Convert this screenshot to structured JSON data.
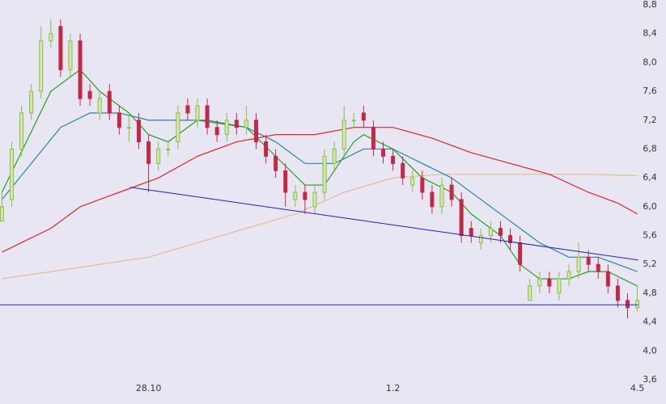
{
  "chart_data": {
    "type": "candlestick",
    "xlim": [
      -0.2,
      65.2
    ],
    "ylim": [
      3.6,
      8.8
    ],
    "yticks": [
      {
        "value": 3.6,
        "label": "3,6"
      },
      {
        "value": 4.0,
        "label": "4,0"
      },
      {
        "value": 4.4,
        "label": "4,4"
      },
      {
        "value": 4.8,
        "label": "4,8"
      },
      {
        "value": 5.2,
        "label": "5,2"
      },
      {
        "value": 5.6,
        "label": "5,6"
      },
      {
        "value": 6.0,
        "label": "6,0"
      },
      {
        "value": 6.4,
        "label": "6,4"
      },
      {
        "value": 6.8,
        "label": "6,8"
      },
      {
        "value": 7.2,
        "label": "7,2"
      },
      {
        "value": 7.6,
        "label": "7,6"
      },
      {
        "value": 8.0,
        "label": "8,0"
      },
      {
        "value": 8.4,
        "label": "8,4"
      },
      {
        "value": 8.8,
        "label": "8,8"
      }
    ],
    "xticks": [
      {
        "value": 15,
        "label": "28.10"
      },
      {
        "value": 40,
        "label": "1.2"
      },
      {
        "value": 65,
        "label": "4.5"
      }
    ],
    "candles": {
      "up_color": "#8cbc4c",
      "down_color": "#c42848",
      "x": [
        0,
        1,
        2,
        3,
        4,
        5,
        6,
        7,
        8,
        9,
        10,
        11,
        12,
        13,
        14,
        15,
        16,
        17,
        18,
        19,
        20,
        21,
        22,
        23,
        24,
        25,
        26,
        27,
        28,
        29,
        30,
        31,
        32,
        33,
        34,
        35,
        36,
        37,
        38,
        39,
        40,
        41,
        42,
        43,
        44,
        45,
        46,
        47,
        48,
        49,
        50,
        51,
        52,
        53,
        54,
        55,
        56,
        57,
        58,
        59,
        60,
        61,
        62,
        63,
        64,
        65
      ],
      "open": [
        5.8,
        6.1,
        6.8,
        7.3,
        7.6,
        8.3,
        8.5,
        7.9,
        8.3,
        7.6,
        7.3,
        7.6,
        7.3,
        7.1,
        7.2,
        6.9,
        6.6,
        6.8,
        6.9,
        7.4,
        7.2,
        7.4,
        7.1,
        7.0,
        7.2,
        7.1,
        7.2,
        6.9,
        6.7,
        6.5,
        6.1,
        6.2,
        6.0,
        6.2,
        6.6,
        6.8,
        7.2,
        7.3,
        7.1,
        6.8,
        6.7,
        6.6,
        6.3,
        6.4,
        6.2,
        6.0,
        6.3,
        6.1,
        5.7,
        5.5,
        5.6,
        5.7,
        5.6,
        5.5,
        4.7,
        4.9,
        5.0,
        4.8,
        5.0,
        5.1,
        5.3,
        5.2,
        5.1,
        4.9,
        4.7,
        4.6
      ],
      "high": [
        6.2,
        6.9,
        7.4,
        7.7,
        8.5,
        8.6,
        8.6,
        8.4,
        8.4,
        7.7,
        7.6,
        7.7,
        7.4,
        7.3,
        7.3,
        7.0,
        6.9,
        6.9,
        7.4,
        7.5,
        7.5,
        7.5,
        7.2,
        7.3,
        7.3,
        7.4,
        7.3,
        7.0,
        6.8,
        6.6,
        6.3,
        6.3,
        6.3,
        6.8,
        6.9,
        7.4,
        7.3,
        7.4,
        7.2,
        6.9,
        6.8,
        6.7,
        6.5,
        6.5,
        6.3,
        6.4,
        6.4,
        6.2,
        5.8,
        5.7,
        5.8,
        5.8,
        5.7,
        5.6,
        5.0,
        5.1,
        5.1,
        5.1,
        5.2,
        5.5,
        5.4,
        5.3,
        5.2,
        5.0,
        4.8,
        4.9
      ],
      "low": [
        5.8,
        6.0,
        6.7,
        7.2,
        7.5,
        8.2,
        7.8,
        7.8,
        7.4,
        7.4,
        7.2,
        7.2,
        7.0,
        6.9,
        6.8,
        6.2,
        6.5,
        6.7,
        6.8,
        7.2,
        7.1,
        7.0,
        6.9,
        6.9,
        7.0,
        7.0,
        6.8,
        6.6,
        6.4,
        6.0,
        6.0,
        5.9,
        5.9,
        6.1,
        6.5,
        6.7,
        7.1,
        7.1,
        6.7,
        6.6,
        6.5,
        6.3,
        6.2,
        6.1,
        5.9,
        5.9,
        6.0,
        5.5,
        5.5,
        5.4,
        5.5,
        5.5,
        5.4,
        5.1,
        4.7,
        4.8,
        4.8,
        4.7,
        4.9,
        5.0,
        5.1,
        5.0,
        4.8,
        4.6,
        4.45,
        4.55
      ],
      "close": [
        6.0,
        6.8,
        7.3,
        7.6,
        8.3,
        8.4,
        7.9,
        8.3,
        7.5,
        7.5,
        7.5,
        7.3,
        7.1,
        7.1,
        6.9,
        6.6,
        6.8,
        6.8,
        7.3,
        7.3,
        7.4,
        7.1,
        7.0,
        7.2,
        7.1,
        7.2,
        6.9,
        6.7,
        6.5,
        6.2,
        6.2,
        6.1,
        6.2,
        6.7,
        6.8,
        7.2,
        7.2,
        7.2,
        6.8,
        6.7,
        6.6,
        6.4,
        6.4,
        6.2,
        6.0,
        6.3,
        6.1,
        5.6,
        5.6,
        5.6,
        5.7,
        5.6,
        5.5,
        5.2,
        4.9,
        5.0,
        4.9,
        5.0,
        5.1,
        5.3,
        5.2,
        5.1,
        4.9,
        4.7,
        4.6,
        4.7
      ]
    },
    "lines": [
      {
        "color": "#e8b894",
        "x": [
          0,
          10,
          15,
          20,
          25,
          30,
          35,
          40,
          45,
          50,
          55,
          60,
          65
        ],
        "values": [
          5.0,
          5.2,
          5.3,
          5.5,
          5.7,
          5.9,
          6.2,
          6.4,
          6.45,
          6.45,
          6.45,
          6.45,
          6.43
        ]
      },
      {
        "color": "#e02424",
        "x": [
          0,
          5,
          8,
          12,
          16,
          20,
          24,
          28,
          32,
          36,
          40,
          44,
          48,
          52,
          56,
          60,
          63,
          65
        ],
        "values": [
          5.37,
          5.7,
          6.0,
          6.2,
          6.4,
          6.7,
          6.9,
          7.0,
          7.0,
          7.1,
          7.1,
          6.95,
          6.75,
          6.6,
          6.45,
          6.2,
          6.05,
          5.9
        ]
      },
      {
        "color": "#2a84a4",
        "x": [
          0,
          3,
          6,
          9,
          12,
          15,
          18,
          21,
          25,
          28,
          31,
          34,
          37,
          40,
          43,
          46,
          49,
          52,
          55,
          58,
          61,
          63,
          65
        ],
        "values": [
          6.1,
          6.6,
          7.1,
          7.3,
          7.3,
          7.2,
          7.2,
          7.2,
          7.1,
          6.9,
          6.6,
          6.6,
          6.8,
          6.8,
          6.6,
          6.4,
          6.1,
          5.8,
          5.5,
          5.3,
          5.3,
          5.2,
          5.1
        ]
      },
      {
        "color": "#22a022",
        "x": [
          0,
          5,
          8,
          10,
          13,
          15,
          17,
          20,
          25,
          28,
          31,
          33,
          36,
          37,
          40,
          43,
          46,
          48,
          51,
          53,
          55,
          58,
          60,
          62,
          65
        ],
        "values": [
          6.2,
          7.6,
          7.9,
          7.6,
          7.3,
          7.0,
          6.9,
          7.2,
          7.1,
          6.7,
          6.3,
          6.3,
          6.9,
          7.0,
          6.8,
          6.4,
          6.2,
          5.9,
          5.6,
          5.2,
          5.0,
          5.0,
          5.1,
          5.1,
          4.9
        ]
      }
    ],
    "trendlines": [
      {
        "color": "#2020d0",
        "x": [
          13.1,
          65.1
        ],
        "values": [
          6.27,
          5.26
        ]
      },
      {
        "color": "#2020d0",
        "x": [
          -0.2,
          65.1
        ],
        "values": [
          4.64,
          4.64
        ]
      }
    ]
  }
}
